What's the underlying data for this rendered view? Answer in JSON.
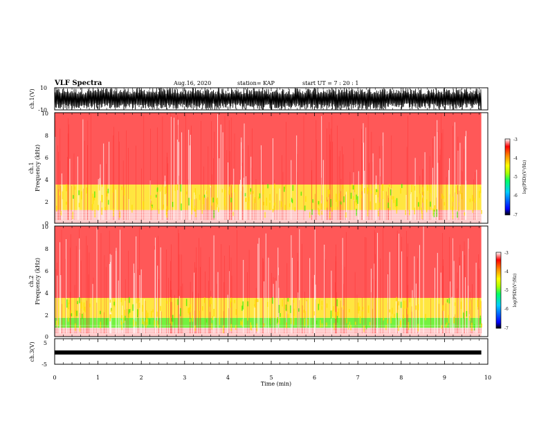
{
  "header": {
    "title": "VLF Spectra",
    "date": "Aug.16, 2020",
    "station": "station= KAP",
    "start": "start UT =  7 : 20 : 1"
  },
  "panels": {
    "ch1_wave": {
      "label": "ch.1(V)",
      "ticks": [
        "10",
        "-10"
      ]
    },
    "ch1_spec": {
      "label_line1": "ch.1",
      "label_line2": "Frequency (kHz)",
      "ticks": [
        "0",
        "2",
        "4",
        "6",
        "8",
        "10"
      ]
    },
    "ch2_spec": {
      "label_line1": "ch.2",
      "label_line2": "Frequency (kHz)",
      "ticks": [
        "0",
        "2",
        "4",
        "6",
        "8",
        "10"
      ]
    },
    "ch3_wave": {
      "label": "ch.3(V)",
      "ticks": [
        "5",
        "-5"
      ]
    }
  },
  "colorbar": {
    "label": "log(PSD)(V²/Hz)",
    "ticks": [
      "-3",
      "-4",
      "-5",
      "-6",
      "-7"
    ]
  },
  "xaxis": {
    "label": "Time (min)",
    "ticks": [
      "0",
      "1",
      "2",
      "3",
      "4",
      "5",
      "6",
      "7",
      "8",
      "9",
      "10"
    ]
  },
  "colors": {
    "background": "#ffffff",
    "axis": "#000000",
    "spec_pink": "#ff9a9a",
    "spec_red": "#ff2020",
    "spec_yellow": "#ffdd00",
    "spec_green": "#44ee00"
  },
  "chart_data": [
    {
      "type": "line",
      "name": "ch.1 waveform",
      "ylabel": "ch.1(V)",
      "ylim": [
        -10,
        10
      ],
      "xlim": [
        0,
        10
      ],
      "data_end_min": 9.85,
      "description_values": "dense oscillation filling most of the +/-10 V range"
    },
    {
      "type": "heatmap",
      "name": "ch.1 spectrogram",
      "ylabel": "Frequency (kHz)",
      "ylim": [
        0,
        10
      ],
      "xlim": [
        0,
        10
      ],
      "data_end_min": 9.85,
      "clim": [
        -7,
        -3
      ],
      "bands": [
        {
          "fmin": 0.0,
          "fmax": 1.2,
          "logpsd": -3.3
        },
        {
          "fmin": 1.2,
          "fmax": 3.5,
          "logpsd": -4.0
        },
        {
          "fmin": 3.5,
          "fmax": 10.0,
          "logpsd": -3.7
        }
      ]
    },
    {
      "type": "heatmap",
      "name": "ch.2 spectrogram",
      "ylabel": "Frequency (kHz)",
      "ylim": [
        0,
        10
      ],
      "xlim": [
        0,
        10
      ],
      "data_end_min": 9.85,
      "clim": [
        -7,
        -3
      ],
      "bands": [
        {
          "fmin": 0.0,
          "fmax": 0.8,
          "logpsd": -3.3
        },
        {
          "fmin": 0.8,
          "fmax": 1.7,
          "logpsd": -4.6
        },
        {
          "fmin": 1.7,
          "fmax": 3.5,
          "logpsd": -4.0
        },
        {
          "fmin": 3.5,
          "fmax": 10.0,
          "logpsd": -3.7
        }
      ]
    },
    {
      "type": "line",
      "name": "ch.3 waveform",
      "ylabel": "ch.3(V)",
      "ylim": [
        -5,
        5
      ],
      "xlim": [
        0,
        10
      ],
      "data_end_min": 9.85,
      "band_v": [
        -1.2,
        0.4
      ]
    }
  ]
}
